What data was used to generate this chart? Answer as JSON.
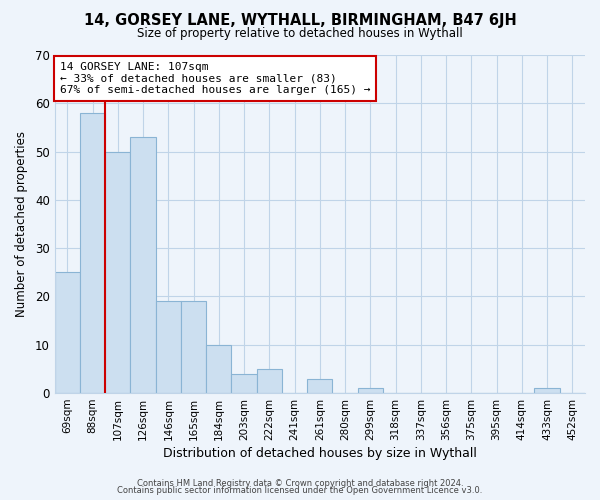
{
  "title": "14, GORSEY LANE, WYTHALL, BIRMINGHAM, B47 6JH",
  "subtitle": "Size of property relative to detached houses in Wythall",
  "xlabel": "Distribution of detached houses by size in Wythall",
  "ylabel": "Number of detached properties",
  "bar_color": "#ccdff0",
  "bar_edge_color": "#8ab4d4",
  "marker_line_color": "#cc0000",
  "categories": [
    "69sqm",
    "88sqm",
    "107sqm",
    "126sqm",
    "146sqm",
    "165sqm",
    "184sqm",
    "203sqm",
    "222sqm",
    "241sqm",
    "261sqm",
    "280sqm",
    "299sqm",
    "318sqm",
    "337sqm",
    "356sqm",
    "375sqm",
    "395sqm",
    "414sqm",
    "433sqm",
    "452sqm"
  ],
  "values": [
    25,
    58,
    50,
    53,
    19,
    19,
    10,
    4,
    5,
    0,
    3,
    0,
    1,
    0,
    0,
    0,
    0,
    0,
    0,
    1,
    0
  ],
  "marker_index": 2,
  "ylim": [
    0,
    70
  ],
  "yticks": [
    0,
    10,
    20,
    30,
    40,
    50,
    60,
    70
  ],
  "annotation_title": "14 GORSEY LANE: 107sqm",
  "annotation_line1": "← 33% of detached houses are smaller (83)",
  "annotation_line2": "67% of semi-detached houses are larger (165) →",
  "footer_line1": "Contains HM Land Registry data © Crown copyright and database right 2024.",
  "footer_line2": "Contains public sector information licensed under the Open Government Licence v3.0.",
  "background_color": "#eef4fb",
  "plot_background_color": "#eef4fb",
  "grid_color": "#c0d4e8",
  "ann_box_color": "#cc0000",
  "ann_bg_color": "#ffffff"
}
